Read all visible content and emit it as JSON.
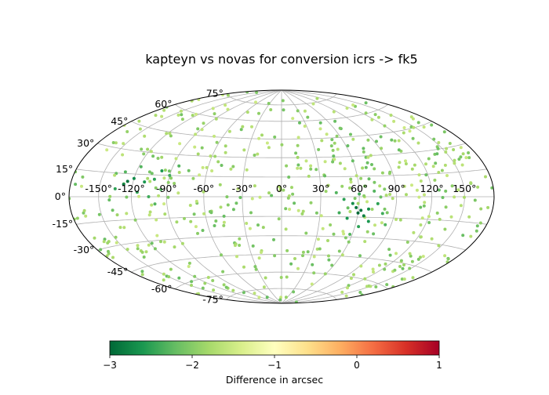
{
  "chart_data": {
    "type": "scatter",
    "projection": "hammer-aitoff",
    "title": "kapteyn vs novas for conversion icrs -> fk5",
    "longitude_ticks": [
      "-150°",
      "-120°",
      "-90°",
      "-60°",
      "-30°",
      "0°",
      "30°",
      "60°",
      "90°",
      "120°",
      "150°"
    ],
    "latitude_ticks": [
      "75°",
      "60°",
      "45°",
      "30°",
      "15°",
      "0°",
      "-15°",
      "-30°",
      "-45°",
      "-60°",
      "-75°"
    ],
    "grid": true,
    "colorbar": {
      "label": "Difference in arcsec",
      "ticks": [
        "−3",
        "−2",
        "−1",
        "0",
        "1"
      ],
      "range": [
        -3,
        1
      ],
      "colormap": "RdYlGn_r"
    },
    "points_estimated": [
      {
        "lon": 60,
        "lat": -12,
        "diff": -3.0
      },
      {
        "lon": 62,
        "lat": -10,
        "diff": -2.9
      },
      {
        "lon": 58,
        "lat": -8,
        "diff": -2.9
      },
      {
        "lon": 65,
        "lat": -14,
        "diff": -2.8
      },
      {
        "lon": 55,
        "lat": -5,
        "diff": -2.7
      },
      {
        "lon": 68,
        "lat": -9,
        "diff": -2.7
      },
      {
        "lon": 70,
        "lat": -18,
        "diff": -2.6
      },
      {
        "lon": 52,
        "lat": -16,
        "diff": -2.6
      },
      {
        "lon": 48,
        "lat": -2,
        "diff": -2.5
      },
      {
        "lon": 75,
        "lat": -5,
        "diff": -2.5
      },
      {
        "lon": 63,
        "lat": -22,
        "diff": -2.5
      },
      {
        "lon": 45,
        "lat": -12,
        "diff": -2.4
      },
      {
        "lon": 80,
        "lat": -12,
        "diff": -2.4
      },
      {
        "lon": 60,
        "lat": 2,
        "diff": -2.4
      },
      {
        "lon": 58,
        "lat": -28,
        "diff": -2.3
      },
      {
        "lon": 42,
        "lat": 3,
        "diff": -2.3
      },
      {
        "lon": 85,
        "lat": -20,
        "diff": -2.3
      },
      {
        "lon": 72,
        "lat": 4,
        "diff": -2.3
      },
      {
        "lon": -125,
        "lat": 10,
        "diff": -2.9
      },
      {
        "lon": -128,
        "lat": 8,
        "diff": -2.8
      },
      {
        "lon": -120,
        "lat": 12,
        "diff": -2.7
      },
      {
        "lon": -110,
        "lat": 10,
        "diff": -2.6
      },
      {
        "lon": -98,
        "lat": 18,
        "diff": -2.6
      },
      {
        "lon": -102,
        "lat": 12,
        "diff": -2.5
      },
      {
        "lon": -135,
        "lat": 5,
        "diff": -2.5
      },
      {
        "lon": -115,
        "lat": 3,
        "diff": -2.5
      },
      {
        "lon": -105,
        "lat": 0,
        "diff": -2.4
      },
      {
        "lon": -90,
        "lat": 15,
        "diff": -2.4
      },
      {
        "lon": -130,
        "lat": 16,
        "diff": -2.3
      },
      {
        "lon": -95,
        "lat": 5,
        "diff": -2.3
      },
      {
        "lon": -118,
        "lat": 20,
        "diff": -2.3
      },
      {
        "lon": -85,
        "lat": 22,
        "diff": -2.3
      },
      {
        "lon": -100,
        "lat": -5,
        "diff": -2.3
      },
      {
        "lon": -140,
        "lat": -2,
        "diff": -2.2
      }
    ],
    "background_points": {
      "count": 560,
      "diff_range": [
        -2.2,
        -1.5
      ],
      "distribution": "uniform over sky"
    }
  }
}
